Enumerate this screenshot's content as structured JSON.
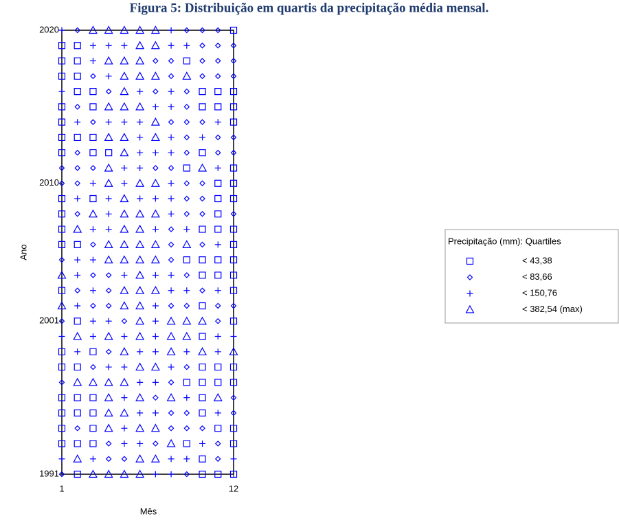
{
  "chart_data": {
    "type": "scatter",
    "title": "Figura 5: Distribuição em quartis da precipitação média mensal.",
    "xlabel": "Mês",
    "ylabel": "Ano",
    "legend_title": "Precipitação (mm): Quartiles",
    "xlim": [
      1,
      12
    ],
    "xticks": [
      1,
      12
    ],
    "ylim": [
      1991,
      2020
    ],
    "yticks": [
      1991,
      2001,
      2010,
      2020
    ],
    "series": [
      {
        "name": "< 43,38",
        "marker": "square",
        "color": "#0000ff",
        "x": [
          12,
          1,
          2,
          1,
          2,
          9,
          1,
          2,
          2,
          3,
          10,
          11,
          12,
          1,
          3,
          10,
          11,
          12,
          1,
          12,
          1,
          2,
          3,
          1,
          3,
          4,
          10,
          9,
          12,
          11,
          12,
          1,
          3,
          11,
          12,
          1,
          11,
          1,
          10,
          11,
          12,
          1,
          2,
          12,
          9,
          10,
          11,
          12,
          10,
          11,
          12,
          1,
          12,
          10,
          2,
          12,
          10,
          1,
          3,
          1,
          2,
          10,
          11,
          12,
          9,
          10,
          11,
          12,
          1,
          2,
          3,
          10,
          1,
          2,
          3,
          10,
          1,
          3,
          11,
          12,
          1,
          2,
          3,
          9,
          12,
          10,
          2,
          10,
          11,
          12
        ],
        "y": [
          2020,
          2019,
          2019,
          2018,
          2018,
          2018,
          2017,
          2017,
          2016,
          2016,
          2016,
          2016,
          2016,
          2015,
          2015,
          2015,
          2015,
          2015,
          2014,
          2014,
          2013,
          2013,
          2013,
          2012,
          2012,
          2012,
          2012,
          2011,
          2011,
          2010,
          2010,
          2009,
          2009,
          2009,
          2009,
          2008,
          2008,
          2007,
          2007,
          2007,
          2007,
          2006,
          2006,
          2006,
          2005,
          2005,
          2005,
          2005,
          2004,
          2004,
          2004,
          2003,
          2003,
          2002,
          2001,
          2001,
          2000,
          1999,
          1999,
          1998,
          1998,
          1998,
          1998,
          1998,
          1997,
          1997,
          1997,
          1997,
          1996,
          1996,
          1996,
          1996,
          1995,
          1995,
          1995,
          1995,
          1994,
          1994,
          1994,
          1994,
          1993,
          1993,
          1993,
          1993,
          1993,
          1992,
          1991,
          1991,
          1991,
          1991
        ]
      },
      {
        "name": "< 83,66",
        "marker": "diamond",
        "color": "#0000ff",
        "x": [
          2,
          9,
          10,
          11,
          10,
          11,
          12,
          7,
          8,
          10,
          11,
          12,
          3,
          8,
          10,
          11,
          12,
          4,
          7,
          9,
          2,
          9,
          3,
          8,
          9,
          10,
          9,
          11,
          12,
          2,
          9,
          11,
          12,
          1,
          2,
          3,
          7,
          8,
          1,
          2,
          9,
          10,
          9,
          10,
          2,
          9,
          10,
          12,
          8,
          3,
          8,
          10,
          1,
          8,
          3,
          4,
          9,
          2,
          4,
          10,
          3,
          4,
          8,
          9,
          11,
          12,
          1,
          5,
          11,
          4,
          3,
          9,
          1,
          8,
          7,
          12,
          8,
          9,
          12,
          2,
          8,
          9,
          10,
          4,
          7,
          11,
          4,
          5,
          11,
          1,
          9
        ],
        "y": [
          2020,
          2020,
          2020,
          2020,
          2019,
          2019,
          2019,
          2018,
          2018,
          2018,
          2018,
          2018,
          2017,
          2017,
          2017,
          2017,
          2017,
          2016,
          2016,
          2016,
          2015,
          2015,
          2014,
          2014,
          2014,
          2014,
          2013,
          2013,
          2013,
          2012,
          2012,
          2012,
          2012,
          2011,
          2011,
          2011,
          2011,
          2011,
          2010,
          2010,
          2010,
          2010,
          2009,
          2009,
          2008,
          2008,
          2008,
          2008,
          2007,
          2006,
          2006,
          2006,
          2005,
          2005,
          2004,
          2004,
          2004,
          2003,
          2003,
          2003,
          2002,
          2002,
          2002,
          2002,
          2002,
          2002,
          2001,
          2001,
          2001,
          1999,
          1998,
          1998,
          1997,
          1997,
          1996,
          1996,
          1995,
          1995,
          1995,
          1994,
          1994,
          1994,
          1994,
          1993,
          1993,
          1993,
          1992,
          1992,
          1992,
          1991,
          1991
        ]
      },
      {
        "name": "< 150,76",
        "marker": "plus",
        "color": "#0000ff",
        "x": [
          1,
          8,
          3,
          4,
          5,
          8,
          9,
          3,
          4,
          1,
          6,
          8,
          7,
          8,
          2,
          4,
          5,
          6,
          11,
          6,
          8,
          10,
          6,
          7,
          8,
          5,
          6,
          11,
          3,
          5,
          8,
          2,
          4,
          6,
          7,
          8,
          4,
          8,
          3,
          4,
          7,
          9,
          11,
          2,
          3,
          2,
          5,
          7,
          8,
          3,
          8,
          9,
          11,
          2,
          7,
          3,
          4,
          7,
          1,
          3,
          5,
          7,
          11,
          12,
          2,
          6,
          7,
          9,
          11,
          4,
          5,
          8,
          6,
          7,
          5,
          9,
          6,
          7,
          11,
          5,
          5,
          6,
          10,
          1,
          3,
          8,
          9,
          12,
          7,
          8
        ],
        "y": [
          2020,
          2020,
          2019,
          2019,
          2019,
          2019,
          2019,
          2018,
          2017,
          2016,
          2016,
          2016,
          2015,
          2015,
          2014,
          2014,
          2014,
          2014,
          2014,
          2013,
          2013,
          2013,
          2012,
          2012,
          2012,
          2011,
          2011,
          2011,
          2010,
          2010,
          2010,
          2009,
          2009,
          2009,
          2009,
          2009,
          2008,
          2008,
          2007,
          2007,
          2007,
          2007,
          2006,
          2005,
          2005,
          2004,
          2004,
          2004,
          2004,
          2003,
          2003,
          2003,
          2003,
          2002,
          2002,
          2001,
          2001,
          2001,
          2000,
          2000,
          2000,
          2000,
          2000,
          2000,
          1999,
          1999,
          1999,
          1999,
          1999,
          1998,
          1998,
          1998,
          1997,
          1997,
          1996,
          1996,
          1995,
          1995,
          1995,
          1994,
          1993,
          1993,
          1993,
          1992,
          1992,
          1992,
          1992,
          1992,
          1991,
          1991
        ]
      },
      {
        "name": "< 382,54 (max)",
        "marker": "triangle",
        "color": "#0000ff",
        "x": [
          3,
          4,
          5,
          6,
          7,
          6,
          7,
          4,
          5,
          6,
          5,
          6,
          7,
          9,
          5,
          4,
          5,
          6,
          7,
          4,
          5,
          7,
          5,
          4,
          10,
          4,
          6,
          7,
          5,
          3,
          5,
          6,
          7,
          2,
          5,
          6,
          4,
          5,
          6,
          7,
          9,
          4,
          5,
          6,
          7,
          1,
          6,
          5,
          6,
          7,
          1,
          5,
          6,
          6,
          8,
          9,
          10,
          2,
          4,
          6,
          8,
          9,
          5,
          8,
          10,
          12,
          6,
          7,
          2,
          3,
          4,
          5,
          4,
          6,
          8,
          11,
          4,
          5,
          4,
          6,
          7,
          8,
          2,
          6,
          7,
          3,
          4,
          5,
          6
        ],
        "y": [
          2020,
          2020,
          2020,
          2020,
          2020,
          2019,
          2019,
          2018,
          2018,
          2018,
          2017,
          2017,
          2017,
          2017,
          2016,
          2015,
          2015,
          2015,
          2014,
          2013,
          2013,
          2013,
          2012,
          2011,
          2011,
          2010,
          2010,
          2010,
          2009,
          2008,
          2008,
          2008,
          2008,
          2007,
          2007,
          2007,
          2006,
          2006,
          2006,
          2006,
          2006,
          2005,
          2005,
          2005,
          2005,
          2004,
          2004,
          2003,
          2003,
          2003,
          2002,
          2002,
          2002,
          2001,
          2001,
          2001,
          2001,
          2000,
          2000,
          2000,
          2000,
          2000,
          1999,
          1999,
          1999,
          1999,
          1998,
          1998,
          1997,
          1997,
          1997,
          1997,
          1996,
          1996,
          1996,
          1996,
          1995,
          1995,
          1994,
          1994,
          1994,
          1993,
          1992,
          1992,
          1992,
          1991,
          1991,
          1991,
          1991
        ]
      }
    ]
  }
}
